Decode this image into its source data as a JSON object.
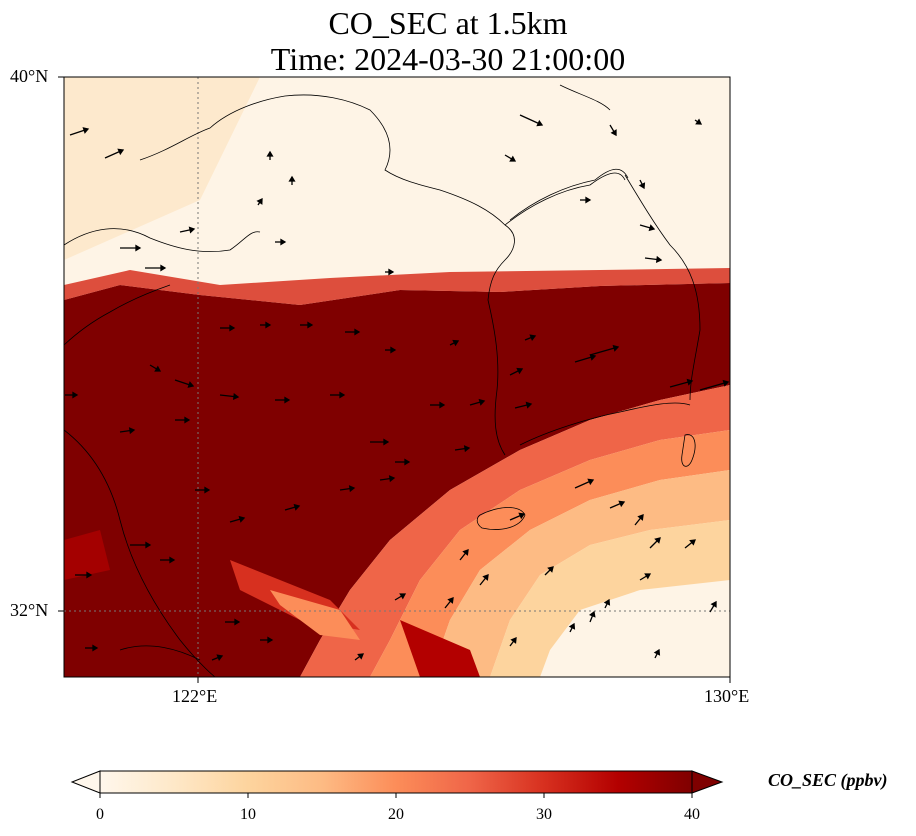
{
  "title": {
    "line1": "CO_SEC at 1.5km",
    "line2": "Time: 2024-03-30 21:00:00"
  },
  "map": {
    "lon_range": [
      119.5,
      130
    ],
    "lat_range": [
      31,
      40
    ],
    "lat_ticks": [
      "40°N",
      "32°N"
    ],
    "lon_ticks": [
      "122°E",
      "130°E"
    ],
    "gridlines": "dotted",
    "field": "CO_SEC",
    "field_summary": "high (>=40 ppbv) band across central map, low values north and southeast",
    "wind_vectors": "black arrows"
  },
  "colorbar": {
    "label": "CO_SEC (ppbv)",
    "ticks": [
      "0",
      "10",
      "20",
      "30",
      "40"
    ],
    "range": [
      0,
      40
    ],
    "colormap": "OrRd",
    "extend": "both",
    "colors": [
      "#fff7ec",
      "#fee8c8",
      "#fdd49e",
      "#fdbb84",
      "#fc8d59",
      "#ef6548",
      "#d7301f",
      "#b30000",
      "#7f0000"
    ]
  }
}
